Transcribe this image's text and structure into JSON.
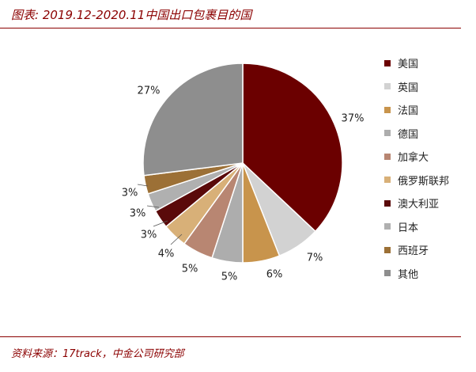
{
  "title": "图表: 2019.12-2020.11中国出口包裹目的国",
  "source": "资料来源：17track，中金公司研究部",
  "chart_data": {
    "type": "pie",
    "title": "2019.12-2020.11中国出口包裹目的国",
    "categories": [
      "美国",
      "英国",
      "法国",
      "德国",
      "加拿大",
      "俄罗斯联邦",
      "澳大利亚",
      "日本",
      "西班牙",
      "其他"
    ],
    "values": [
      37,
      7,
      6,
      5,
      5,
      4,
      3,
      3,
      3,
      27
    ],
    "labels": [
      "37%",
      "7%",
      "6%",
      "5%",
      "5%",
      "4%",
      "3%",
      "3%",
      "3%",
      "27%"
    ],
    "colors": [
      "#6b0000",
      "#d2d2d2",
      "#c8944c",
      "#adadad",
      "#b88672",
      "#d8b078",
      "#5a0a0a",
      "#b0b0b0",
      "#9c7036",
      "#8e8e8e"
    ],
    "legend_position": "right",
    "start": "top, clockwise"
  }
}
